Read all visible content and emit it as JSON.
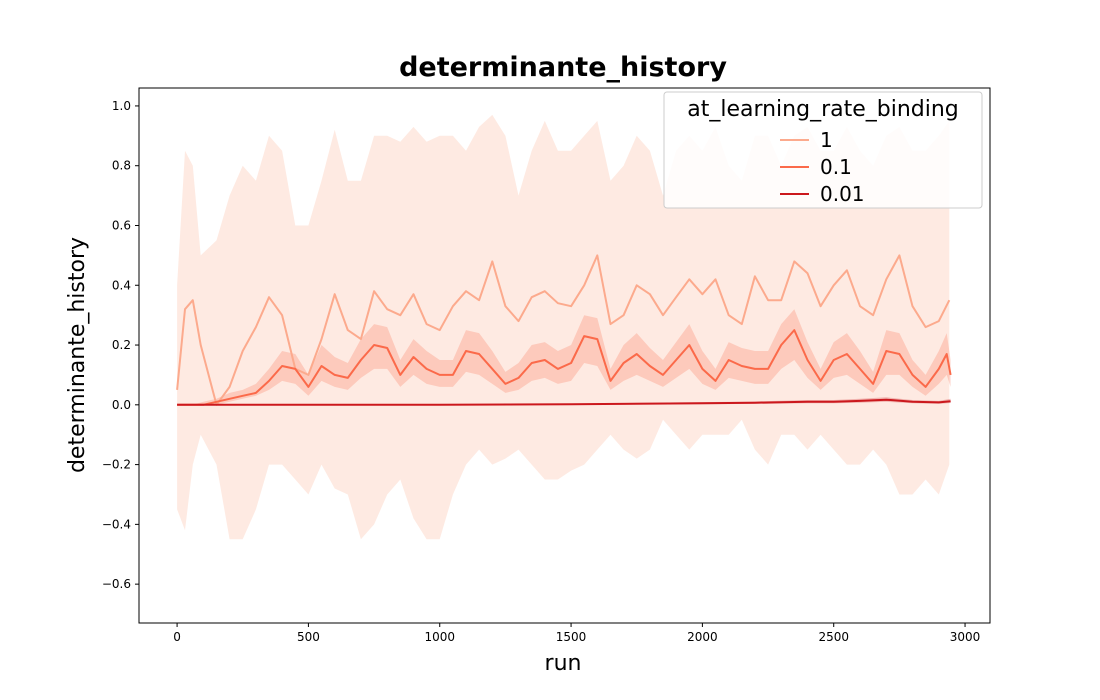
{
  "chart_data": {
    "type": "line",
    "title": "determinante_history",
    "xlabel": "run",
    "ylabel": "determinante_history",
    "xlim": [
      -145,
      3095
    ],
    "ylim": [
      -0.73,
      1.06
    ],
    "xticks": [
      0,
      500,
      1000,
      1500,
      2000,
      2500,
      3000
    ],
    "xtick_labels": [
      "0",
      "500",
      "1000",
      "1500",
      "2000",
      "2500",
      "3000"
    ],
    "yticks": [
      -0.6,
      -0.4,
      -0.2,
      0.0,
      0.2,
      0.4,
      0.6,
      0.8,
      1.0
    ],
    "ytick_labels": [
      "−0.6",
      "−0.4",
      "−0.2",
      "0.0",
      "0.2",
      "0.4",
      "0.6",
      "0.8",
      "1.0"
    ],
    "grid": false,
    "legend": {
      "title": "at_learning_rate_binding",
      "placement": "top-right",
      "entries": [
        "1",
        "0.1",
        "0.01"
      ]
    },
    "series": [
      {
        "name": "1",
        "color": "#fcaa8d",
        "band_color": "#fde3d8",
        "x": [
          0,
          30,
          60,
          90,
          150,
          200,
          250,
          300,
          350,
          400,
          450,
          500,
          550,
          600,
          650,
          700,
          750,
          800,
          850,
          900,
          950,
          1000,
          1050,
          1100,
          1150,
          1200,
          1250,
          1300,
          1350,
          1400,
          1450,
          1500,
          1550,
          1600,
          1650,
          1700,
          1750,
          1800,
          1850,
          1900,
          1950,
          2000,
          2050,
          2100,
          2150,
          2200,
          2250,
          2300,
          2350,
          2400,
          2450,
          2500,
          2550,
          2600,
          2650,
          2700,
          2750,
          2800,
          2850,
          2900,
          2940
        ],
        "values": [
          0.05,
          0.32,
          0.35,
          0.2,
          0.0,
          0.06,
          0.18,
          0.26,
          0.36,
          0.3,
          0.12,
          0.1,
          0.22,
          0.37,
          0.25,
          0.22,
          0.38,
          0.32,
          0.3,
          0.37,
          0.27,
          0.25,
          0.33,
          0.38,
          0.35,
          0.48,
          0.33,
          0.28,
          0.36,
          0.38,
          0.34,
          0.33,
          0.4,
          0.5,
          0.27,
          0.3,
          0.4,
          0.37,
          0.3,
          0.36,
          0.42,
          0.37,
          0.42,
          0.3,
          0.27,
          0.43,
          0.35,
          0.35,
          0.48,
          0.44,
          0.33,
          0.4,
          0.45,
          0.33,
          0.3,
          0.42,
          0.5,
          0.33,
          0.26,
          0.28,
          0.35
        ],
        "lower": [
          -0.35,
          -0.42,
          -0.2,
          -0.1,
          -0.2,
          -0.45,
          -0.45,
          -0.35,
          -0.2,
          -0.2,
          -0.25,
          -0.3,
          -0.2,
          -0.28,
          -0.3,
          -0.45,
          -0.4,
          -0.3,
          -0.25,
          -0.38,
          -0.45,
          -0.45,
          -0.3,
          -0.2,
          -0.15,
          -0.2,
          -0.18,
          -0.15,
          -0.2,
          -0.25,
          -0.25,
          -0.22,
          -0.2,
          -0.15,
          -0.1,
          -0.15,
          -0.18,
          -0.15,
          -0.05,
          -0.1,
          -0.15,
          -0.1,
          -0.1,
          -0.1,
          -0.05,
          -0.15,
          -0.2,
          -0.1,
          -0.1,
          -0.15,
          -0.1,
          -0.15,
          -0.2,
          -0.2,
          -0.15,
          -0.2,
          -0.3,
          -0.3,
          -0.25,
          -0.3,
          -0.2
        ],
        "upper": [
          0.4,
          0.85,
          0.8,
          0.5,
          0.55,
          0.7,
          0.8,
          0.75,
          0.9,
          0.85,
          0.6,
          0.6,
          0.75,
          0.92,
          0.75,
          0.75,
          0.9,
          0.9,
          0.88,
          0.93,
          0.88,
          0.9,
          0.9,
          0.85,
          0.93,
          0.97,
          0.9,
          0.7,
          0.85,
          0.95,
          0.85,
          0.85,
          0.9,
          0.95,
          0.75,
          0.8,
          0.9,
          0.85,
          0.7,
          0.85,
          0.9,
          0.85,
          0.93,
          0.8,
          0.75,
          0.9,
          0.9,
          0.8,
          0.9,
          0.93,
          0.85,
          0.85,
          0.93,
          0.85,
          0.8,
          0.9,
          0.93,
          0.85,
          0.85,
          0.9,
          0.95
        ]
      },
      {
        "name": "0.1",
        "color": "#fb6a4a",
        "x": [
          0,
          30,
          60,
          100,
          150,
          200,
          250,
          300,
          350,
          400,
          450,
          500,
          550,
          600,
          650,
          700,
          750,
          800,
          850,
          900,
          950,
          1000,
          1050,
          1100,
          1150,
          1200,
          1250,
          1300,
          1350,
          1400,
          1450,
          1500,
          1550,
          1600,
          1650,
          1700,
          1750,
          1800,
          1850,
          1900,
          1950,
          2000,
          2050,
          2100,
          2150,
          2200,
          2250,
          2300,
          2350,
          2400,
          2450,
          2500,
          2550,
          2600,
          2650,
          2700,
          2750,
          2800,
          2850,
          2900,
          2930,
          2945
        ],
        "values": [
          0.0,
          0.0,
          0.0,
          0.0,
          0.01,
          0.02,
          0.03,
          0.04,
          0.08,
          0.13,
          0.12,
          0.06,
          0.13,
          0.1,
          0.09,
          0.15,
          0.2,
          0.19,
          0.1,
          0.16,
          0.12,
          0.1,
          0.1,
          0.18,
          0.17,
          0.12,
          0.07,
          0.09,
          0.14,
          0.15,
          0.12,
          0.14,
          0.23,
          0.22,
          0.08,
          0.14,
          0.17,
          0.13,
          0.1,
          0.15,
          0.2,
          0.12,
          0.08,
          0.15,
          0.13,
          0.12,
          0.12,
          0.2,
          0.25,
          0.15,
          0.08,
          0.15,
          0.17,
          0.12,
          0.07,
          0.18,
          0.17,
          0.1,
          0.06,
          0.12,
          0.17,
          0.1
        ],
        "lower": [
          0.0,
          0.0,
          0.0,
          0.0,
          0.0,
          0.01,
          0.02,
          0.03,
          0.05,
          0.08,
          0.07,
          0.03,
          0.08,
          0.06,
          0.05,
          0.09,
          0.12,
          0.12,
          0.06,
          0.1,
          0.07,
          0.06,
          0.06,
          0.11,
          0.1,
          0.07,
          0.04,
          0.05,
          0.08,
          0.09,
          0.07,
          0.08,
          0.14,
          0.13,
          0.05,
          0.08,
          0.1,
          0.08,
          0.06,
          0.09,
          0.12,
          0.07,
          0.05,
          0.09,
          0.08,
          0.07,
          0.07,
          0.12,
          0.15,
          0.09,
          0.05,
          0.09,
          0.1,
          0.07,
          0.04,
          0.1,
          0.1,
          0.06,
          0.03,
          0.07,
          0.1,
          0.06
        ],
        "upper": [
          0.0,
          0.0,
          0.0,
          0.01,
          0.02,
          0.04,
          0.05,
          0.07,
          0.12,
          0.18,
          0.17,
          0.1,
          0.2,
          0.16,
          0.14,
          0.22,
          0.27,
          0.26,
          0.15,
          0.22,
          0.18,
          0.15,
          0.15,
          0.25,
          0.24,
          0.18,
          0.11,
          0.14,
          0.2,
          0.21,
          0.18,
          0.2,
          0.3,
          0.29,
          0.12,
          0.2,
          0.24,
          0.19,
          0.15,
          0.21,
          0.27,
          0.18,
          0.12,
          0.21,
          0.19,
          0.18,
          0.18,
          0.27,
          0.32,
          0.21,
          0.12,
          0.21,
          0.24,
          0.18,
          0.11,
          0.25,
          0.24,
          0.15,
          0.1,
          0.18,
          0.24,
          0.15
        ]
      },
      {
        "name": "0.01",
        "color": "#cb181d",
        "x": [
          0,
          500,
          1000,
          1500,
          2000,
          2200,
          2400,
          2500,
          2600,
          2700,
          2800,
          2900,
          2945
        ],
        "values": [
          0.0,
          0.0,
          0.0,
          0.002,
          0.005,
          0.007,
          0.01,
          0.01,
          0.013,
          0.017,
          0.01,
          0.008,
          0.012
        ],
        "lower": [
          0.0,
          0.0,
          0.0,
          0.0,
          0.002,
          0.003,
          0.005,
          0.005,
          0.007,
          0.01,
          0.005,
          0.003,
          0.006
        ],
        "upper": [
          0.0,
          0.0,
          0.001,
          0.004,
          0.009,
          0.011,
          0.016,
          0.016,
          0.02,
          0.025,
          0.016,
          0.013,
          0.02
        ]
      }
    ]
  }
}
